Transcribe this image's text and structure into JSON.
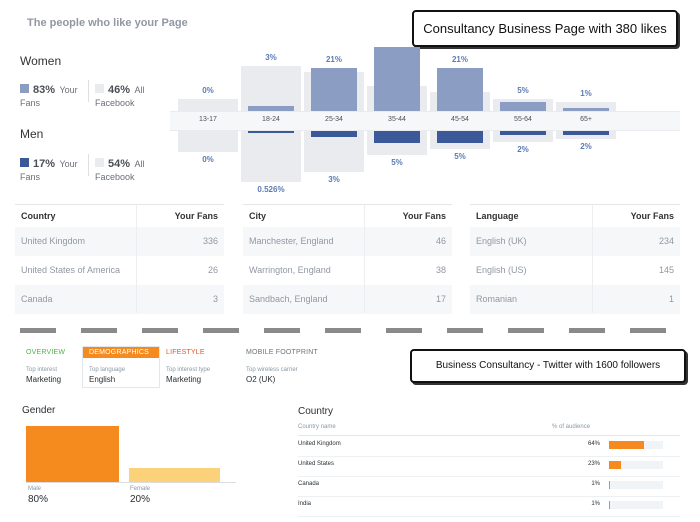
{
  "facebook": {
    "title": "The people who like your Page",
    "callout": "Consultancy Business Page with 380 likes",
    "women": {
      "label": "Women",
      "your_fans_pct": "83%",
      "your_fans_word": "Your",
      "your_fans_sub": "Fans",
      "all_pct": "46%",
      "all_word": "All",
      "all_sub": "Facebook"
    },
    "men": {
      "label": "Men",
      "your_fans_pct": "17%",
      "your_fans_word": "Your",
      "your_fans_sub": "Fans",
      "all_pct": "54%",
      "all_word": "All",
      "all_sub": "Facebook"
    },
    "colors": {
      "women": "#8b9dc3",
      "men": "#3b5998",
      "all": "#e9ebee"
    },
    "age_groups": [
      {
        "label": "13-17",
        "women": "0%",
        "men": "0%",
        "women_value": 0,
        "men_value": 0,
        "all_women_value": 4,
        "all_men_value": 7
      },
      {
        "label": "18-24",
        "women": "3%",
        "men": "0.526%",
        "women_value": 3,
        "men_value": 0.526,
        "all_women_value": 14,
        "all_men_value": 16
      },
      {
        "label": "25-34",
        "women": "21%",
        "men": "3%",
        "women_value": 21,
        "men_value": 3,
        "all_women_value": 12,
        "all_men_value": 13
      },
      {
        "label": "35-44",
        "women": "",
        "men": "5%",
        "women_value": 31,
        "men_value": 5,
        "all_women_value": 8,
        "all_men_value": 8
      },
      {
        "label": "45-54",
        "women": "21%",
        "men": "5%",
        "women_value": 21,
        "men_value": 5,
        "all_women_value": 6,
        "all_men_value": 6
      },
      {
        "label": "55-64",
        "women": "5%",
        "men": "2%",
        "women_value": 5,
        "men_value": 2,
        "all_women_value": 4,
        "all_men_value": 4
      },
      {
        "label": "65+",
        "women": "1%",
        "men": "2%",
        "women_value": 1,
        "men_value": 2,
        "all_women_value": 3,
        "all_men_value": 3
      }
    ],
    "tables": [
      {
        "header": "Country",
        "header_value": "Your Fans",
        "rows": [
          {
            "name": "United Kingdom",
            "value": "336"
          },
          {
            "name": "United States of America",
            "value": "26"
          },
          {
            "name": "Canada",
            "value": "3"
          }
        ]
      },
      {
        "header": "City",
        "header_value": "Your Fans",
        "rows": [
          {
            "name": "Manchester, England",
            "value": "46"
          },
          {
            "name": "Warrington, England",
            "value": "38"
          },
          {
            "name": "Sandbach, England",
            "value": "17"
          }
        ]
      },
      {
        "header": "Language",
        "header_value": "Your Fans",
        "rows": [
          {
            "name": "English (UK)",
            "value": "234"
          },
          {
            "name": "English (US)",
            "value": "145"
          },
          {
            "name": "Romanian",
            "value": "1"
          }
        ]
      }
    ]
  },
  "twitter": {
    "callout": "Business Consultancy - Twitter with 1600 followers",
    "tabs": [
      {
        "name": "OVERVIEW",
        "label": "Top interest",
        "value": "Marketing",
        "color": "#4bb543"
      },
      {
        "name": "DEMOGRAPHICS",
        "label": "Top language",
        "value": "English",
        "color": "#f58a1f",
        "active": true
      },
      {
        "name": "LIFESTYLE",
        "label": "Top interest type",
        "value": "Marketing",
        "color": "#e0552c"
      },
      {
        "name": "MOBILE FOOTPRINT",
        "label": "Top wireless carrier",
        "value": "O2 (UK)",
        "color": "#66757f"
      }
    ],
    "gender": {
      "title": "Gender",
      "male_label": "Male",
      "male_value": "80%",
      "male_fraction": 0.8,
      "female_label": "Female",
      "female_value": "20%",
      "female_fraction": 0.2,
      "male_color": "#f58a1f",
      "female_color": "#fbd27a"
    },
    "country": {
      "title": "Country",
      "col_name": "Country name",
      "col_value": "% of audience",
      "rows": [
        {
          "name": "United Kingdom",
          "value": "64%",
          "fraction": 0.64
        },
        {
          "name": "United States",
          "value": "23%",
          "fraction": 0.23
        },
        {
          "name": "Canada",
          "value": "1%",
          "fraction": 0.01
        },
        {
          "name": "India",
          "value": "1%",
          "fraction": 0.01
        }
      ]
    }
  }
}
